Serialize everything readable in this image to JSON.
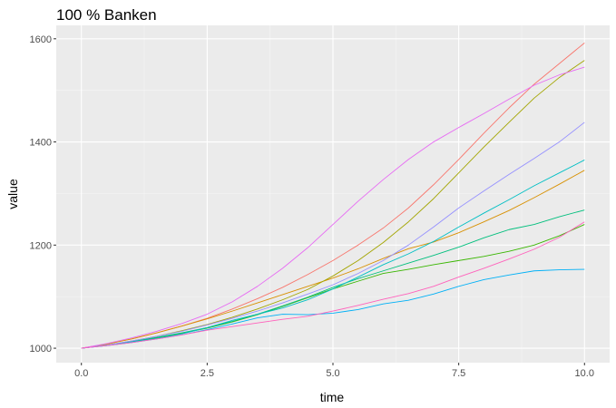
{
  "chart_data": {
    "type": "line",
    "title": "100 % Banken",
    "xlabel": "time",
    "ylabel": "value",
    "xlim": [
      -0.5,
      10.5
    ],
    "ylim": [
      972,
      1626
    ],
    "x_ticks": [
      {
        "value": 0,
        "label": "0.0"
      },
      {
        "value": 2.5,
        "label": "2.5"
      },
      {
        "value": 5,
        "label": "5.0"
      },
      {
        "value": 7.5,
        "label": "7.5"
      },
      {
        "value": 10,
        "label": "10.0"
      }
    ],
    "y_ticks": [
      {
        "value": 1000,
        "label": "1000"
      },
      {
        "value": 1200,
        "label": "1200"
      },
      {
        "value": 1400,
        "label": "1400"
      },
      {
        "value": 1600,
        "label": "1600"
      }
    ],
    "grid": true,
    "background": "#ebebeb",
    "x": [
      0,
      0.5,
      1,
      1.5,
      2,
      2.5,
      3,
      3.5,
      4,
      4.5,
      5,
      5.5,
      6,
      6.5,
      7,
      7.5,
      8,
      8.5,
      9,
      9.5,
      10
    ],
    "series": [
      {
        "color": "#f8766d",
        "values": [
          1000,
          1008,
          1018,
          1030,
          1043,
          1058,
          1076,
          1096,
          1118,
          1143,
          1170,
          1200,
          1233,
          1272,
          1317,
          1366,
          1417,
          1466,
          1512,
          1552,
          1592
        ]
      },
      {
        "color": "#d89000",
        "values": [
          1000,
          1008,
          1018,
          1030,
          1043,
          1057,
          1072,
          1088,
          1104,
          1120,
          1136,
          1154,
          1174,
          1193,
          1206,
          1224,
          1245,
          1267,
          1292,
          1318,
          1345
        ]
      },
      {
        "color": "#a3a500",
        "values": [
          1000,
          1006,
          1014,
          1023,
          1034,
          1046,
          1060,
          1076,
          1094,
          1114,
          1140,
          1170,
          1205,
          1245,
          1290,
          1340,
          1390,
          1438,
          1485,
          1525,
          1558
        ]
      },
      {
        "color": "#39b600",
        "values": [
          1000,
          1006,
          1012,
          1020,
          1029,
          1039,
          1051,
          1065,
          1081,
          1098,
          1115,
          1130,
          1145,
          1153,
          1162,
          1170,
          1178,
          1188,
          1200,
          1218,
          1240
        ]
      },
      {
        "color": "#00bf7d",
        "values": [
          1000,
          1006,
          1013,
          1021,
          1030,
          1040,
          1052,
          1066,
          1082,
          1099,
          1118,
          1135,
          1150,
          1165,
          1180,
          1196,
          1214,
          1230,
          1240,
          1255,
          1268
        ]
      },
      {
        "color": "#00bfc4",
        "values": [
          1000,
          1005,
          1012,
          1019,
          1028,
          1040,
          1054,
          1066,
          1078,
          1094,
          1115,
          1138,
          1162,
          1183,
          1207,
          1235,
          1262,
          1288,
          1315,
          1340,
          1365
        ]
      },
      {
        "color": "#00b0f6",
        "values": [
          1000,
          1005,
          1011,
          1018,
          1026,
          1036,
          1047,
          1059,
          1066,
          1065,
          1068,
          1075,
          1086,
          1093,
          1105,
          1120,
          1133,
          1142,
          1150,
          1152,
          1153
        ]
      },
      {
        "color": "#9590ff",
        "values": [
          1000,
          1006,
          1014,
          1023,
          1033,
          1045,
          1058,
          1072,
          1088,
          1105,
          1123,
          1145,
          1170,
          1200,
          1235,
          1272,
          1305,
          1337,
          1368,
          1400,
          1438
        ]
      },
      {
        "color": "#e76bf3",
        "values": [
          1000,
          1009,
          1020,
          1033,
          1048,
          1066,
          1090,
          1120,
          1155,
          1195,
          1240,
          1285,
          1327,
          1366,
          1400,
          1428,
          1455,
          1483,
          1510,
          1530,
          1545
        ]
      },
      {
        "color": "#ff62bc",
        "values": [
          1000,
          1005,
          1011,
          1018,
          1026,
          1035,
          1042,
          1049,
          1056,
          1062,
          1072,
          1083,
          1095,
          1106,
          1120,
          1138,
          1155,
          1173,
          1192,
          1215,
          1245
        ]
      }
    ]
  }
}
